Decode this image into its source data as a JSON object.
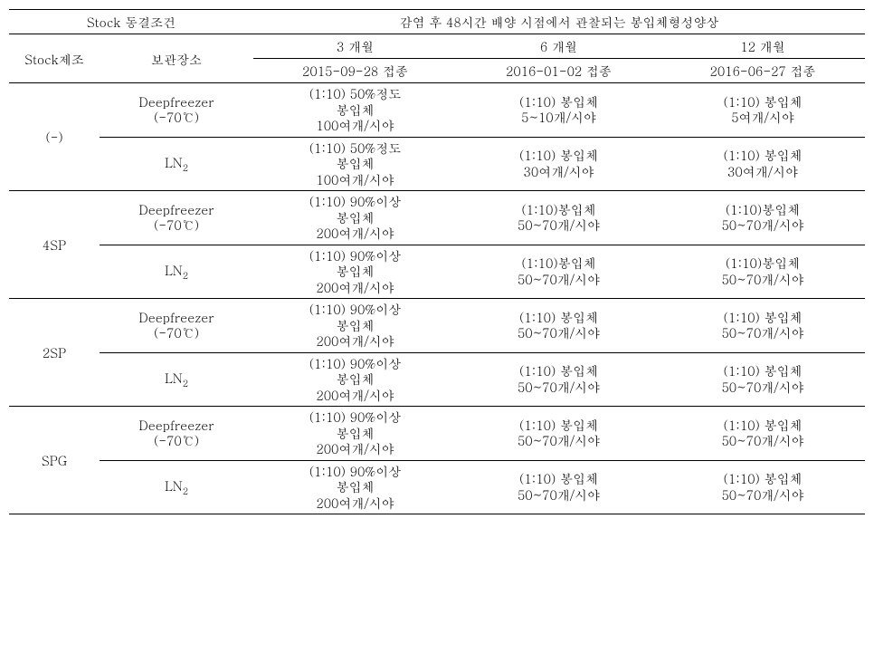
{
  "header": {
    "stock_cond": "Stock 동결조건",
    "obs_title": "감염 후 48시간 배양 시점에서 관찰되는 봉입체형성양상",
    "stock_mfg": "Stock제조",
    "storage": "보관장소",
    "m3": "3 개월",
    "m6": "6 개월",
    "m12": "12 개월",
    "d3": "2015-09-28 접종",
    "d6": "2016-01-02 접종",
    "d12": "2016-06-27 접종"
  },
  "storages": {
    "deep": "Deepfreezer\n(-70℃)",
    "ln2": "LN"
  },
  "groups": [
    "(-)",
    "4SP",
    "2SP",
    "SPG"
  ],
  "rows": [
    {
      "m3": "(1:10) 50%정도\n봉입체\n100여개/시야",
      "m6": "(1:10) 봉입체\n5~10개/시야",
      "m12": "(1:10) 봉입체\n5여개/시야"
    },
    {
      "m3": "(1:10) 50%정도\n봉입체\n100여개/시야",
      "m6": "(1:10) 봉입체\n30여개/시야",
      "m12": "(1:10) 봉입체\n30여개/시야"
    },
    {
      "m3": "(1:10) 90%이상\n봉입체\n200여개/시야",
      "m6": "(1:10)봉입체\n50~70개/시야",
      "m12": "(1:10)봉입체\n50~70개/시야"
    },
    {
      "m3": "(1:10) 90%이상\n봉입체\n200여개/시야",
      "m6": "(1:10)봉입체\n50~70개/시야",
      "m12": "(1:10)봉입체\n50~70개/시야"
    },
    {
      "m3": "(1:10) 90%이상\n봉입체\n200여개/시야",
      "m6": "(1:10) 봉입체\n50~70개/시야",
      "m12": "(1:10) 봉입체\n50~70개/시야"
    },
    {
      "m3": "(1:10) 90%이상\n봉입체\n200여개/시야",
      "m6": "(1:10) 봉입체\n50~70개/시야",
      "m12": "(1:10) 봉입체\n50~70개/시야"
    },
    {
      "m3": "(1:10) 90%이상\n봉입체\n200여개/시야",
      "m6": "(1:10) 봉입체\n50~70개/시야",
      "m12": "(1:10) 봉입체\n50~70개/시야"
    },
    {
      "m3": "(1:10) 90%이상\n봉입체\n200여개/시야",
      "m6": "(1:10) 봉입체\n50~70개/시야",
      "m12": "(1:10) 봉입체\n50~70개/시야"
    }
  ]
}
